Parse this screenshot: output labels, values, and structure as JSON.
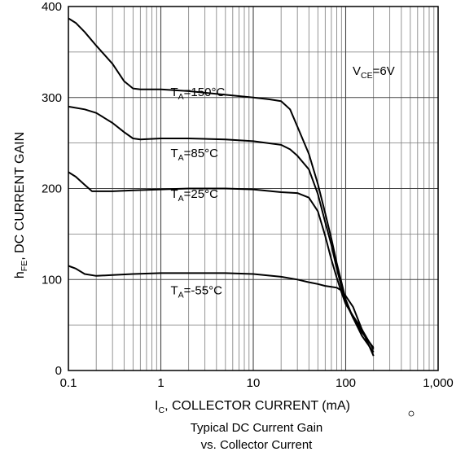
{
  "chart_data": {
    "type": "line",
    "x_scale": "log",
    "xlim": [
      0.1,
      1000
    ],
    "ylim": [
      0,
      400
    ],
    "grid": true,
    "x_ticks": [
      "0.1",
      "1",
      "10",
      "100",
      "1,000"
    ],
    "y_ticks": [
      "0",
      "100",
      "200",
      "300",
      "400"
    ],
    "xlabel": {
      "main": "I",
      "sub": "C",
      "rest": ", COLLECTOR CURRENT (mA)"
    },
    "ylabel": {
      "main": "h",
      "sub": "FE",
      "rest": ", DC CURRENT GAIN"
    },
    "caption": [
      "Typical DC Current Gain",
      "vs. Collector Current"
    ],
    "condition": {
      "main": "V",
      "sub": "CE",
      "rest": "=6V"
    },
    "series": [
      {
        "name": "TA=150°C",
        "label": {
          "main": "T",
          "sub": "A",
          "rest": "=150°C"
        },
        "points": [
          [
            0.1,
            387
          ],
          [
            0.12,
            382
          ],
          [
            0.15,
            372
          ],
          [
            0.2,
            357
          ],
          [
            0.3,
            337
          ],
          [
            0.4,
            318
          ],
          [
            0.5,
            310
          ],
          [
            0.6,
            309
          ],
          [
            1,
            309
          ],
          [
            2,
            307
          ],
          [
            5,
            303
          ],
          [
            10,
            300
          ],
          [
            15,
            298
          ],
          [
            20,
            296
          ],
          [
            25,
            287
          ],
          [
            30,
            268
          ],
          [
            40,
            238
          ],
          [
            50,
            205
          ],
          [
            60,
            173
          ],
          [
            70,
            145
          ],
          [
            80,
            118
          ],
          [
            90,
            97
          ],
          [
            100,
            78
          ],
          [
            120,
            58
          ],
          [
            150,
            38
          ],
          [
            200,
            20
          ]
        ]
      },
      {
        "name": "TA=85°C",
        "label": {
          "main": "T",
          "sub": "A",
          "rest": "=85°C"
        },
        "points": [
          [
            0.1,
            290
          ],
          [
            0.15,
            287
          ],
          [
            0.2,
            283
          ],
          [
            0.3,
            272
          ],
          [
            0.4,
            262
          ],
          [
            0.5,
            255
          ],
          [
            0.6,
            254
          ],
          [
            1,
            255
          ],
          [
            2,
            255
          ],
          [
            5,
            254
          ],
          [
            10,
            252
          ],
          [
            20,
            248
          ],
          [
            25,
            243
          ],
          [
            30,
            236
          ],
          [
            40,
            221
          ],
          [
            50,
            194
          ],
          [
            60,
            163
          ],
          [
            70,
            138
          ],
          [
            80,
            112
          ],
          [
            90,
            92
          ],
          [
            100,
            75
          ],
          [
            120,
            58
          ],
          [
            150,
            42
          ],
          [
            200,
            25
          ]
        ]
      },
      {
        "name": "TA=25°C",
        "label": {
          "main": "T",
          "sub": "A",
          "rest": "=25°C"
        },
        "points": [
          [
            0.1,
            218
          ],
          [
            0.12,
            213
          ],
          [
            0.15,
            204
          ],
          [
            0.18,
            197
          ],
          [
            0.2,
            197
          ],
          [
            0.3,
            197
          ],
          [
            0.5,
            198
          ],
          [
            1,
            199
          ],
          [
            2,
            200
          ],
          [
            5,
            200
          ],
          [
            10,
            199
          ],
          [
            20,
            196
          ],
          [
            30,
            195
          ],
          [
            40,
            190
          ],
          [
            50,
            175
          ],
          [
            60,
            148
          ],
          [
            70,
            122
          ],
          [
            80,
            102
          ],
          [
            90,
            86
          ],
          [
            100,
            73
          ],
          [
            120,
            60
          ],
          [
            150,
            45
          ],
          [
            200,
            23
          ]
        ]
      },
      {
        "name": "TA=-55°C",
        "label": {
          "main": "T",
          "sub": "A",
          "rest": "=-55°C"
        },
        "points": [
          [
            0.1,
            115
          ],
          [
            0.12,
            112
          ],
          [
            0.15,
            106
          ],
          [
            0.2,
            104
          ],
          [
            0.3,
            105
          ],
          [
            0.5,
            106
          ],
          [
            1,
            107
          ],
          [
            2,
            107
          ],
          [
            5,
            107
          ],
          [
            10,
            106
          ],
          [
            20,
            103
          ],
          [
            30,
            100
          ],
          [
            40,
            97
          ],
          [
            50,
            95
          ],
          [
            60,
            93
          ],
          [
            70,
            92
          ],
          [
            80,
            91
          ],
          [
            90,
            88
          ],
          [
            100,
            82
          ],
          [
            120,
            70
          ],
          [
            150,
            45
          ],
          [
            200,
            16
          ]
        ]
      }
    ]
  }
}
